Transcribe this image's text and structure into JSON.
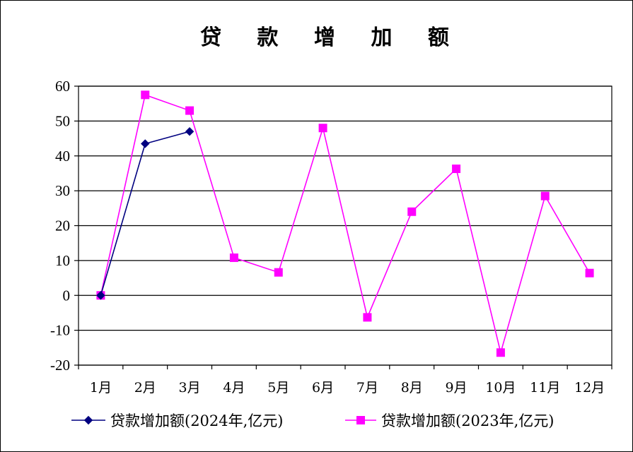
{
  "chart_data": {
    "type": "line",
    "title": "贷 款 增 加 额",
    "categories": [
      "1月",
      "2月",
      "3月",
      "4月",
      "5月",
      "6月",
      "7月",
      "8月",
      "9月",
      "10月",
      "11月",
      "12月"
    ],
    "ylim": [
      -20,
      60
    ],
    "yticks": [
      -20,
      -10,
      0,
      10,
      20,
      30,
      40,
      50,
      60
    ],
    "grid": true,
    "legend_position": "bottom",
    "series": [
      {
        "name": "贷款增加额(2024年,亿元)",
        "color": "#000080",
        "marker": "diamond",
        "values": [
          0,
          43.5,
          47,
          null,
          null,
          null,
          null,
          null,
          null,
          null,
          null,
          null
        ]
      },
      {
        "name": "贷款增加额(2023年,亿元)",
        "color": "#ff00ff",
        "marker": "square",
        "values": [
          0,
          57.5,
          53,
          10.8,
          6.6,
          48,
          -6.3,
          24,
          36.3,
          -16.4,
          28.5,
          6.4
        ]
      }
    ]
  }
}
